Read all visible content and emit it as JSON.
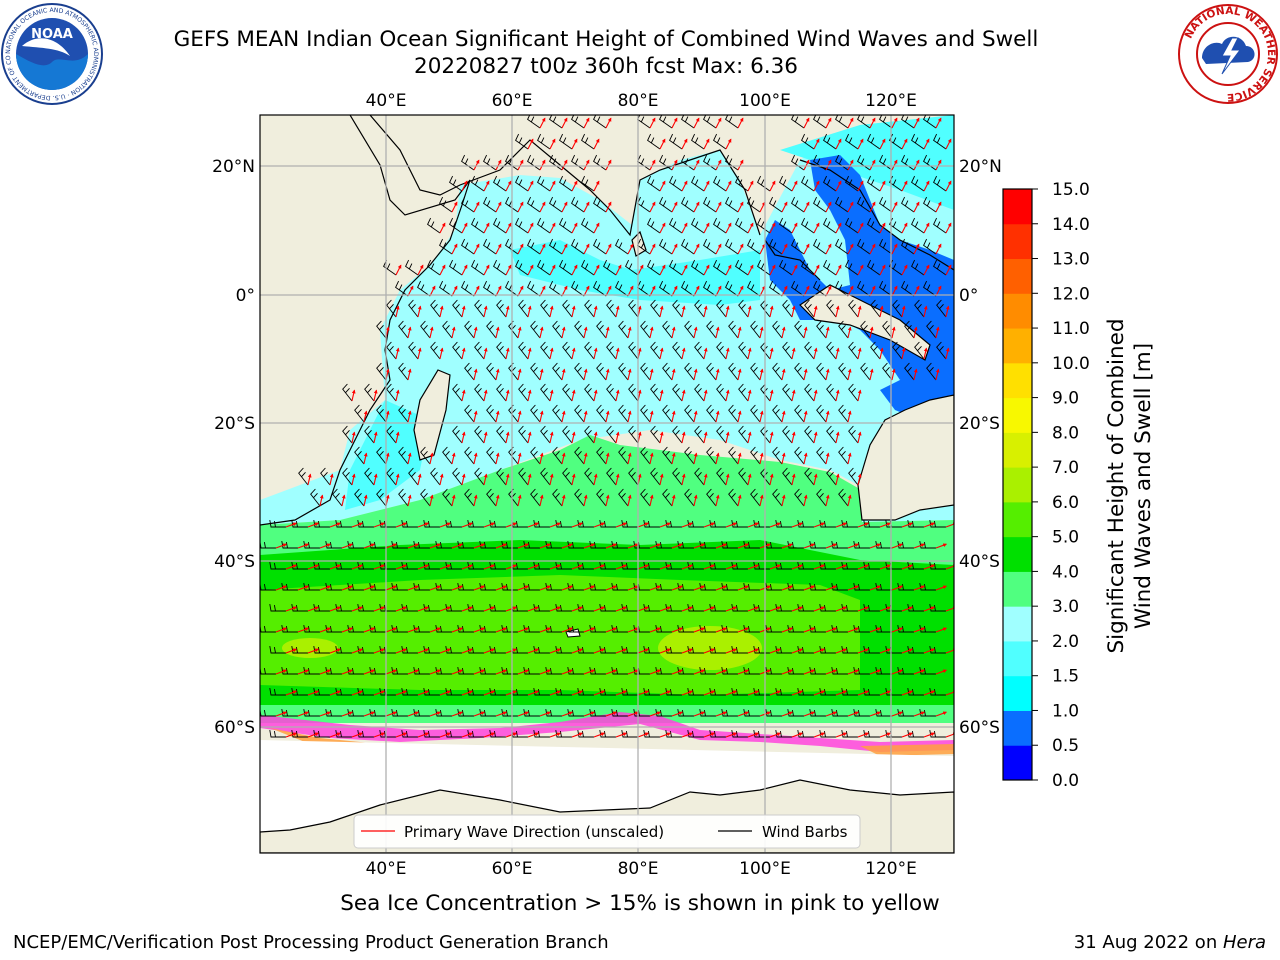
{
  "title": {
    "line1": "GEFS MEAN Indian Ocean Significant Height of Combined Wind Waves and Swell",
    "line2": "20220827 t00z 360h fcst   Max: 6.36"
  },
  "map": {
    "lon_ticks": [
      "40°E",
      "60°E",
      "80°E",
      "100°E",
      "120°E"
    ],
    "lat_ticks_left": [
      "20°N",
      "0°",
      "20°S",
      "40°S",
      "60°S"
    ],
    "lat_ticks_right": [
      "20°N",
      "0°",
      "20°S",
      "40°S",
      "60°S"
    ],
    "legend": {
      "wave_direction": "Primary Wave Direction (unscaled)",
      "wind_barbs": "Wind Barbs",
      "wave_color": "#ff0000",
      "barb_color": "#000000"
    }
  },
  "colorbar": {
    "label_line1": "Significant Height of Combined",
    "label_line2": "Wind Waves and Swell [m]",
    "tick_labels": [
      "0.0",
      "0.5",
      "1.0",
      "1.5",
      "2.0",
      "3.0",
      "4.0",
      "5.0",
      "6.0",
      "7.0",
      "8.0",
      "9.0",
      "10.0",
      "11.0",
      "12.0",
      "13.0",
      "14.0",
      "15.0"
    ],
    "colors": [
      "#0000ff",
      "#0a6eff",
      "#00ffff",
      "#50ffff",
      "#a0ffff",
      "#50ff80",
      "#00e000",
      "#55ee00",
      "#aaf000",
      "#d8f000",
      "#f8f800",
      "#ffe000",
      "#ffb000",
      "#ff8c00",
      "#ff6000",
      "#ff3000",
      "#ff0000"
    ]
  },
  "logos": {
    "noaa_text": "NOAA",
    "noaa_ring": "NATIONAL OCEANIC AND ATMOSPHERIC ADMINISTRATION · U.S. DEPARTMENT OF COMMERCE",
    "nws_ring": "NATIONAL WEATHER SERVICE"
  },
  "footer": {
    "note": "Sea Ice Concentration > 15% is shown in pink to yellow",
    "credit": "NCEP/EMC/Verification Post Processing Product Generation Branch",
    "date_prefix": "31 Aug 2022 on ",
    "date_host": "Hera"
  }
}
